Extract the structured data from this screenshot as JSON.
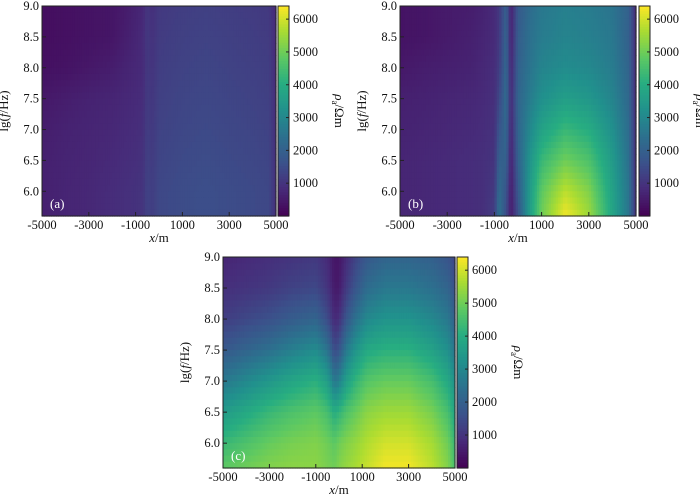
{
  "chart_data": [
    {
      "type": "heatmap",
      "panel_label": "(a)",
      "xlabel": "x/m",
      "ylabel": "lg(f/Hz)",
      "colorbar_label": "ρa/Ωm",
      "x_ticks": [
        -5000,
        -3000,
        -1000,
        1000,
        3000,
        5000
      ],
      "y_ticks": [
        6.0,
        6.5,
        7.0,
        7.5,
        8.0,
        8.5,
        9.0
      ],
      "colorbar_ticks": [
        1000,
        2000,
        3000,
        4000,
        5000,
        6000
      ],
      "xlim": [
        -5000,
        5000
      ],
      "ylim": [
        5.6,
        9.0
      ],
      "clim": [
        0,
        6400
      ],
      "x": [
        -5000,
        -4000,
        -3000,
        -2000,
        -1500,
        -1000,
        -700,
        -500,
        -300,
        0,
        500,
        1000,
        2000,
        3000,
        4000,
        4700,
        5000
      ],
      "y": [
        5.6,
        6.0,
        6.5,
        7.0,
        7.5,
        8.0,
        8.5,
        9.0
      ],
      "z": [
        [
          600,
          700,
          750,
          850,
          900,
          950,
          1000,
          1300,
          1200,
          1400,
          1450,
          1500,
          1550,
          1500,
          1450,
          1400,
          900
        ],
        [
          600,
          700,
          750,
          850,
          900,
          950,
          1000,
          1300,
          1200,
          1400,
          1450,
          1500,
          1550,
          1500,
          1450,
          1400,
          900
        ],
        [
          600,
          680,
          720,
          800,
          850,
          900,
          950,
          1250,
          1150,
          1350,
          1400,
          1450,
          1500,
          1450,
          1400,
          1350,
          900
        ],
        [
          550,
          650,
          700,
          750,
          800,
          850,
          900,
          1200,
          1100,
          1300,
          1350,
          1400,
          1450,
          1400,
          1350,
          1300,
          850
        ],
        [
          450,
          550,
          650,
          700,
          750,
          800,
          850,
          1150,
          1050,
          1250,
          1300,
          1350,
          1400,
          1350,
          1300,
          1250,
          850
        ],
        [
          300,
          350,
          450,
          550,
          650,
          750,
          800,
          1100,
          1000,
          1200,
          1250,
          1300,
          1350,
          1300,
          1250,
          1200,
          800
        ],
        [
          250,
          300,
          350,
          400,
          550,
          700,
          800,
          1100,
          950,
          1150,
          1200,
          1250,
          1300,
          1250,
          1200,
          1150,
          800
        ],
        [
          250,
          300,
          350,
          400,
          500,
          650,
          750,
          1050,
          900,
          1100,
          1150,
          1200,
          1250,
          1200,
          1150,
          1100,
          750
        ]
      ]
    },
    {
      "type": "heatmap",
      "panel_label": "(b)",
      "xlabel": "x/m",
      "ylabel": "lg(f/Hz)",
      "colorbar_label": "ρa/Ωm",
      "x_ticks": [
        -5000,
        -3000,
        -1000,
        1000,
        3000,
        5000
      ],
      "y_ticks": [
        6.0,
        6.5,
        7.0,
        7.5,
        8.0,
        8.5,
        9.0
      ],
      "colorbar_ticks": [
        1000,
        2000,
        3000,
        4000,
        5000,
        6000
      ],
      "xlim": [
        -5000,
        5000
      ],
      "ylim": [
        5.6,
        9.0
      ],
      "clim": [
        0,
        6400
      ],
      "x": [
        -5000,
        -4000,
        -3000,
        -2000,
        -1500,
        -1000,
        -800,
        -500,
        -300,
        0,
        500,
        1000,
        2000,
        3000,
        4000,
        4700,
        5000
      ],
      "y": [
        5.6,
        6.0,
        6.5,
        7.0,
        7.5,
        8.0,
        8.5,
        9.0
      ],
      "z": [
        [
          700,
          750,
          800,
          850,
          900,
          1200,
          2500,
          1500,
          500,
          1600,
          3600,
          5000,
          6300,
          5500,
          3800,
          2500,
          900
        ],
        [
          700,
          750,
          800,
          850,
          900,
          1100,
          2300,
          1700,
          500,
          1800,
          3500,
          4800,
          5800,
          5200,
          3700,
          2500,
          900
        ],
        [
          700,
          750,
          800,
          850,
          900,
          1000,
          2000,
          2000,
          600,
          2000,
          3300,
          4300,
          5000,
          4600,
          3500,
          2400,
          850
        ],
        [
          650,
          700,
          750,
          800,
          850,
          950,
          1700,
          2200,
          700,
          2100,
          3000,
          3700,
          4300,
          4000,
          3200,
          2300,
          850
        ],
        [
          600,
          650,
          700,
          750,
          800,
          900,
          1400,
          2300,
          800,
          2100,
          2700,
          3200,
          3600,
          3400,
          2900,
          2200,
          800
        ],
        [
          450,
          550,
          600,
          650,
          750,
          850,
          1200,
          2200,
          700,
          2000,
          2500,
          2900,
          3100,
          3000,
          2700,
          2100,
          800
        ],
        [
          350,
          400,
          500,
          600,
          700,
          800,
          1100,
          2100,
          600,
          1900,
          2400,
          2700,
          2900,
          2800,
          2600,
          2000,
          800
        ],
        [
          350,
          400,
          500,
          550,
          650,
          800,
          1100,
          2000,
          600,
          1800,
          2300,
          2600,
          2800,
          2700,
          2500,
          2000,
          750
        ]
      ]
    },
    {
      "type": "heatmap",
      "panel_label": "(c)",
      "xlabel": "x/m",
      "ylabel": "lg(f/Hz)",
      "colorbar_label": "ρa/Ωm",
      "x_ticks": [
        -5000,
        -3000,
        -1000,
        1000,
        3000,
        5000
      ],
      "y_ticks": [
        6.0,
        6.5,
        7.0,
        7.5,
        8.0,
        8.5,
        9.0
      ],
      "colorbar_ticks": [
        1000,
        2000,
        3000,
        4000,
        5000,
        6000
      ],
      "xlim": [
        -5000,
        5000
      ],
      "ylim": [
        5.6,
        9.0
      ],
      "clim": [
        0,
        6400
      ],
      "x": [
        -5000,
        -4000,
        -3000,
        -2000,
        -1000,
        -500,
        -200,
        0,
        300,
        700,
        1200,
        2000,
        3000,
        4000,
        4700,
        5000
      ],
      "y": [
        5.6,
        6.0,
        6.5,
        7.0,
        7.5,
        8.0,
        8.5,
        9.0
      ],
      "z": [
        [
          4800,
          5000,
          5200,
          5300,
          5300,
          5100,
          5000,
          5200,
          5400,
          5600,
          5900,
          6300,
          6300,
          5800,
          5200,
          4500
        ],
        [
          4300,
          4600,
          4900,
          5100,
          5200,
          5000,
          4800,
          5000,
          5200,
          5400,
          5700,
          6000,
          6000,
          5600,
          5000,
          4300
        ],
        [
          3500,
          3900,
          4300,
          4600,
          4800,
          4500,
          4000,
          4200,
          4600,
          4900,
          5300,
          5500,
          5500,
          5100,
          4500,
          3800
        ],
        [
          2600,
          3000,
          3400,
          3800,
          4100,
          3600,
          2600,
          2800,
          3600,
          4200,
          4700,
          4900,
          4900,
          4500,
          3900,
          3200
        ],
        [
          1800,
          2100,
          2400,
          2800,
          3100,
          2500,
          1500,
          1700,
          2600,
          3300,
          3900,
          4100,
          4100,
          3700,
          3200,
          2500
        ],
        [
          1200,
          1400,
          1600,
          1900,
          2100,
          1500,
          800,
          900,
          1700,
          2400,
          3000,
          3300,
          3300,
          3000,
          2600,
          2000
        ],
        [
          900,
          1000,
          1100,
          1300,
          1400,
          1000,
          500,
          500,
          1100,
          1700,
          2300,
          2600,
          2600,
          2400,
          2100,
          1600
        ],
        [
          700,
          800,
          900,
          1000,
          1100,
          800,
          400,
          400,
          800,
          1300,
          1800,
          2100,
          2100,
          2000,
          1700,
          1300
        ]
      ]
    }
  ]
}
